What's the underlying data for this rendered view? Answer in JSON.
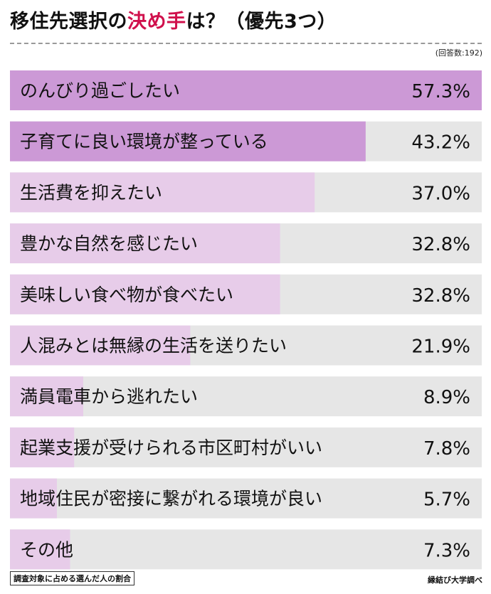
{
  "header": {
    "title_before": "移住先選択の",
    "title_highlight": "決め手",
    "title_after": "は？（優先3つ）",
    "respondents": "(回答数:192)"
  },
  "footer": {
    "footnote": "調査対象に占める選んだ人の割合",
    "source": "縁結び大学調べ"
  },
  "colors": {
    "accent": "#d0104c",
    "bar_strong": "#cc99d6",
    "bar_light": "#e7cce9",
    "track": "#e6e6e6"
  },
  "chart_data": {
    "type": "bar",
    "orientation": "horizontal",
    "xlim": [
      0,
      57.3
    ],
    "categories": [
      "のんびり過ごしたい",
      "子育てに良い環境が整っている",
      "生活費を抑えたい",
      "豊かな自然を感じたい",
      "美味しい食べ物が食べたい",
      "人混みとは無縁の生活を送りたい",
      "満員電車から逃れたい",
      "起業支援が受けられる市区町村がいい",
      "地域住民が密接に繋がれる環境が良い",
      "その他"
    ],
    "values": [
      57.3,
      43.2,
      37.0,
      32.8,
      32.8,
      21.9,
      8.9,
      7.8,
      5.7,
      7.3
    ],
    "value_labels": [
      "57.3%",
      "43.2%",
      "37.0%",
      "32.8%",
      "32.8%",
      "21.9%",
      "8.9%",
      "7.8%",
      "5.7%",
      "7.3%"
    ],
    "highlight_count": 2
  }
}
